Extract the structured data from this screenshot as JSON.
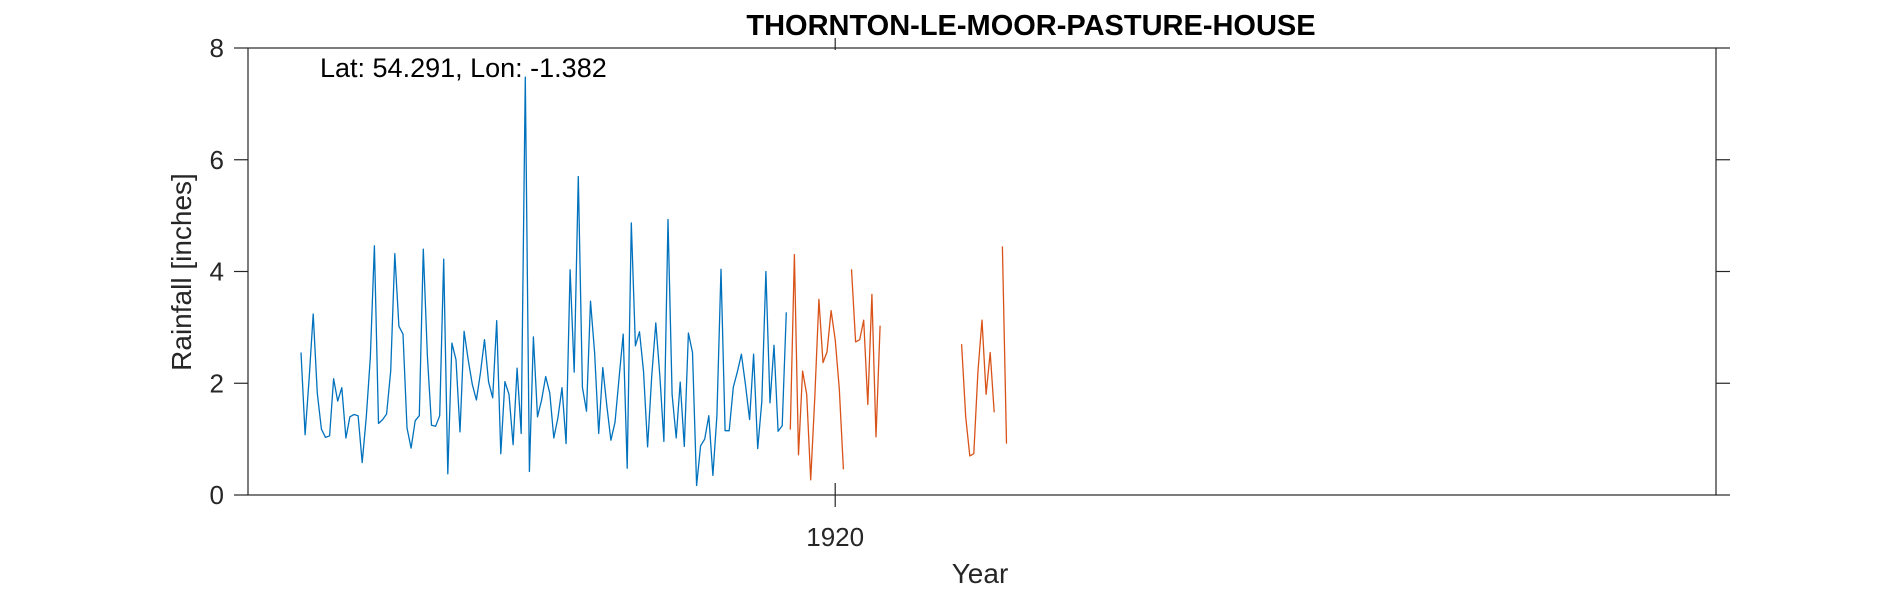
{
  "chart_data": {
    "type": "line",
    "title": "THORNTON-LE-MOOR-PASTURE-HOUSE",
    "xlabel": "Year",
    "ylabel": "Rainfall [inches]",
    "annotation": "Lat: 54.291, Lon: -1.382",
    "ylim": [
      0,
      8
    ],
    "yticks": [
      0,
      2,
      4,
      6,
      8
    ],
    "xticks": [
      {
        "value": "1920-01",
        "label": "1920"
      }
    ],
    "xlim": [
      "1908-01",
      "1938-01"
    ],
    "grid": false,
    "series": [
      {
        "color": "#0072BD",
        "start": "1909-02",
        "values": [
          2.55,
          1.08,
          2.1,
          3.24,
          1.82,
          1.18,
          1.03,
          1.06,
          2.08,
          1.68,
          1.92,
          1.02,
          1.4,
          1.44,
          1.42,
          0.58,
          1.4,
          2.45,
          4.46,
          1.28,
          1.35,
          1.45,
          2.22,
          4.32,
          3.02,
          2.88,
          1.2,
          0.84,
          1.33,
          1.42,
          4.4,
          2.48,
          1.25,
          1.23,
          1.42,
          4.22,
          0.38,
          2.72,
          2.42,
          1.13,
          2.93,
          2.42,
          1.98,
          1.7,
          2.18,
          2.78,
          2.02,
          1.74,
          3.12,
          0.74,
          2.03,
          1.8,
          0.9,
          2.27,
          1.1,
          7.48,
          0.42,
          2.83,
          1.4,
          1.7,
          2.12,
          1.82,
          1.02,
          1.38,
          1.92,
          0.92,
          4.03,
          2.2,
          5.7,
          1.93,
          1.5,
          3.47,
          2.55,
          1.1,
          2.28,
          1.6,
          0.98,
          1.3,
          2.1,
          2.88,
          0.48,
          4.87,
          2.67,
          2.92,
          2.22,
          0.86,
          2.12,
          3.08,
          2.12,
          0.96,
          4.93,
          1.8,
          1.02,
          2.02,
          0.87,
          2.9,
          2.55,
          0.17,
          0.88,
          1.0,
          1.42,
          0.35,
          1.42,
          4.04,
          1.15,
          1.15,
          1.93,
          2.2,
          2.52,
          1.97,
          1.35,
          2.52,
          0.83,
          1.67,
          4.0,
          1.65,
          2.68,
          1.14,
          1.24,
          3.27
        ]
      },
      {
        "color": "#D95319",
        "start": "1919-02",
        "values": [
          1.17,
          4.3,
          0.72,
          2.22,
          1.8,
          0.27,
          1.75,
          3.5,
          2.37,
          2.56,
          3.3,
          2.78,
          1.9,
          0.46,
          null,
          4.04,
          2.74,
          2.78,
          3.13,
          1.62,
          3.59,
          1.04,
          3.03,
          null,
          null,
          null,
          null,
          null,
          null,
          null,
          null,
          null,
          null,
          null,
          null,
          null,
          null,
          null,
          null,
          null,
          null,
          null,
          2.7,
          1.4,
          0.7,
          0.74,
          2.2,
          3.13,
          1.8,
          2.55,
          1.48,
          null,
          4.45,
          0.92
        ]
      }
    ]
  }
}
